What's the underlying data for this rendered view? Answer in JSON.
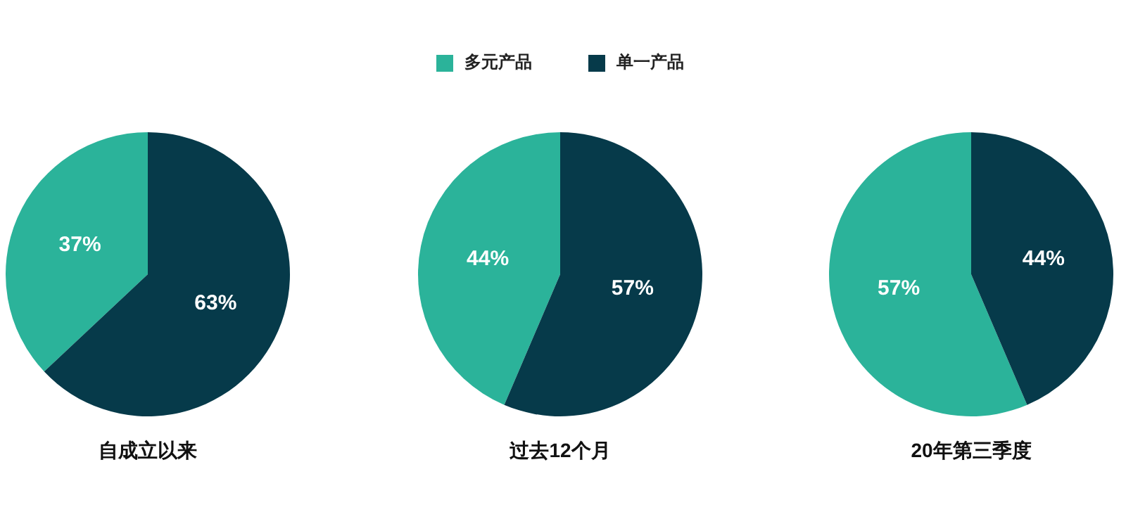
{
  "chart_data": [
    {
      "type": "pie",
      "title": "自成立以来",
      "categories": [
        null,
        null
      ],
      "values": [
        37,
        63
      ],
      "colors": [
        "#2bb39a",
        "#063a4a"
      ],
      "value_labels": [
        "37%",
        "63%"
      ]
    },
    {
      "type": "pie",
      "title": "过去12个月",
      "categories": [
        "多元产品",
        "单一产品"
      ],
      "values": [
        44,
        57
      ],
      "colors": [
        "#2bb39a",
        "#063a4a"
      ],
      "value_labels": [
        "44%",
        "57%"
      ],
      "legend": "top"
    },
    {
      "type": "pie",
      "title": "20年第三季度",
      "categories": [
        null,
        null
      ],
      "values": [
        57,
        44
      ],
      "colors": [
        "#2bb39a",
        "#063a4a"
      ],
      "value_labels": [
        "57%",
        "44%"
      ]
    }
  ]
}
